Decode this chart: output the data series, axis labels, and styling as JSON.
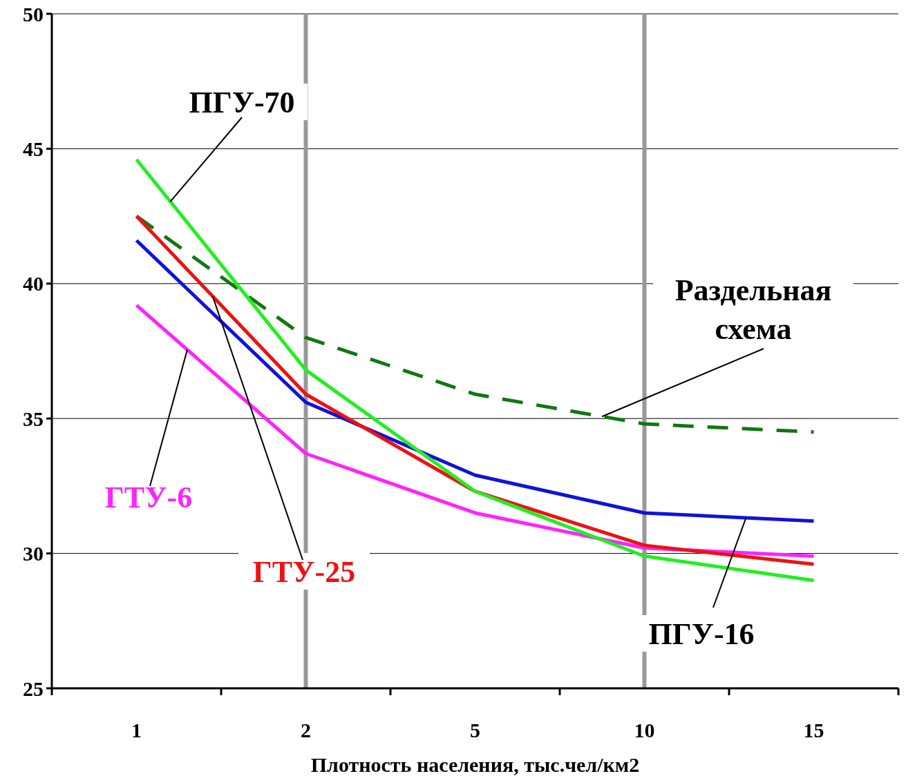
{
  "chart_data": {
    "type": "line",
    "xlabel": "Плотность населения, тыс.чел/км2",
    "categories": [
      "1",
      "2",
      "5",
      "10",
      "15"
    ],
    "series": [
      {
        "name": "Раздельная схема",
        "color": "#117711",
        "line_style": "dashed",
        "values": [
          42.5,
          38.0,
          35.9,
          34.8,
          34.5
        ]
      },
      {
        "name": "ПГУ-16",
        "color": "#1111dd",
        "values": [
          41.6,
          35.6,
          32.9,
          31.5,
          31.2
        ]
      },
      {
        "name": "ГТУ-6",
        "color": "#ff22ff",
        "values": [
          39.2,
          33.7,
          31.5,
          30.2,
          29.9
        ]
      },
      {
        "name": "ГТУ-25",
        "color": "#ee1111",
        "values": [
          42.5,
          35.9,
          32.3,
          30.3,
          29.6
        ]
      },
      {
        "name": "ПГУ-70",
        "color": "#22ee22",
        "values": [
          44.6,
          36.8,
          32.3,
          29.9,
          29.0
        ]
      }
    ],
    "ylim": [
      25,
      50
    ],
    "yticks": [
      25,
      30,
      35,
      40,
      45,
      50
    ],
    "grid": "y",
    "legend": false,
    "marker": "none",
    "line_style": "solid",
    "ref_lines": [
      {
        "axis": "x",
        "value": "2",
        "color": "#999999"
      },
      {
        "axis": "x",
        "value": "10",
        "color": "#999999"
      }
    ]
  }
}
